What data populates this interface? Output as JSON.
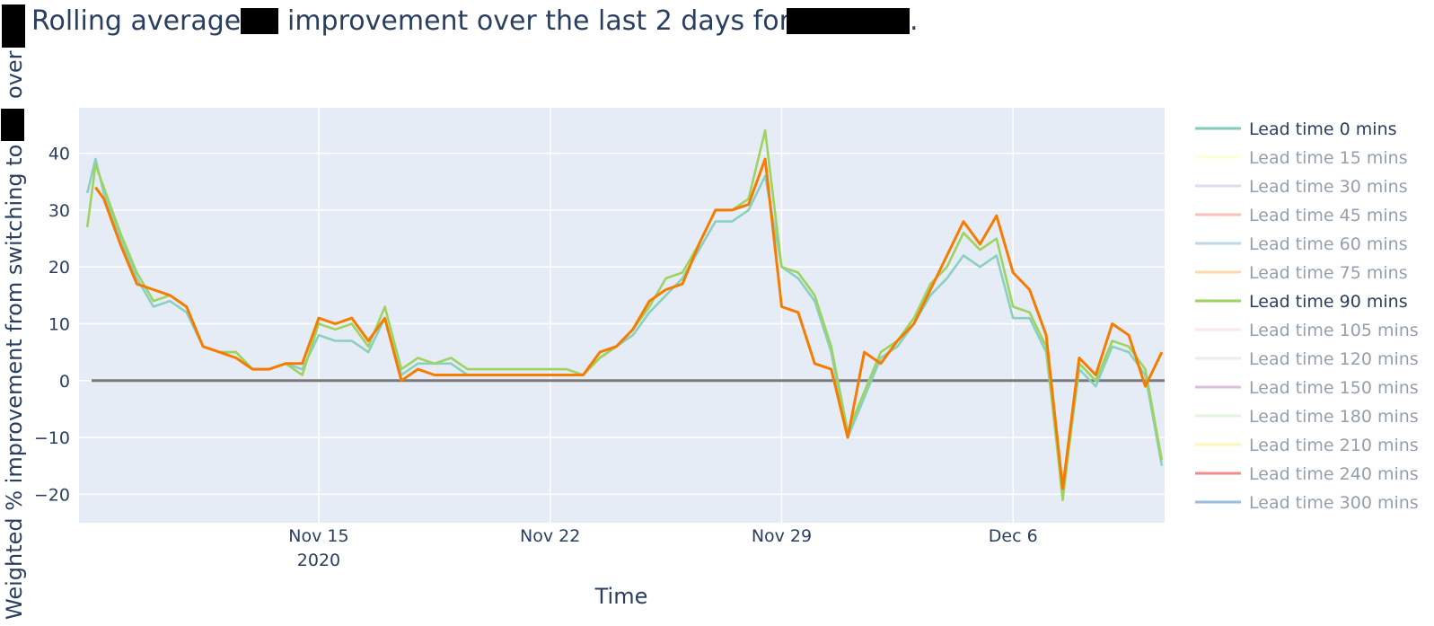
{
  "chart_data": {
    "type": "line",
    "title_parts": [
      "Rolling average",
      "improvement over the last 2 days for",
      "."
    ],
    "xlabel": "Time",
    "ylabel_parts": [
      "over",
      "Weighted % improvement from switching to"
    ],
    "x_range": [
      "2020-11-07T18:00",
      "2020-12-10T14:00"
    ],
    "y_range": [
      -25,
      48
    ],
    "y_ticks": [
      -20,
      -10,
      0,
      10,
      20,
      30,
      40
    ],
    "y_tick_labels": [
      "−20",
      "−10",
      "0",
      "10",
      "20",
      "30",
      "40"
    ],
    "x_ticks": [
      {
        "date": "2020-11-15",
        "label": "Nov 15",
        "sublabel": "2020"
      },
      {
        "date": "2020-11-22",
        "label": "Nov 22",
        "sublabel": ""
      },
      {
        "date": "2020-11-29",
        "label": "Nov 29",
        "sublabel": ""
      },
      {
        "date": "2020-12-06",
        "label": "Dec 6",
        "sublabel": ""
      }
    ],
    "reference_line": {
      "y": 0,
      "color": "#7a7a7a"
    },
    "grid": true,
    "plot_bgcolor": "#e5ecf6",
    "legend_position": "right",
    "series": [
      {
        "name": "Lead time 0 mins",
        "color": "#7fcdbb",
        "visible": true,
        "offset": 0.0
      },
      {
        "name": "Lead time 15 mins",
        "color": "#ffffb3",
        "visible": false
      },
      {
        "name": "Lead time 30 mins",
        "color": "#bebada",
        "visible": false
      },
      {
        "name": "Lead time 45 mins",
        "color": "#fb8072",
        "visible": false
      },
      {
        "name": "Lead time 60 mins",
        "color": "#80b1d3",
        "visible": false
      },
      {
        "name": "Lead time 75 mins",
        "color": "#fdb462",
        "visible": false
      },
      {
        "name": "Lead time 90 mins",
        "color": "#9ed35f",
        "visible": true,
        "offset": 1.0
      },
      {
        "name": "Lead time 105 mins",
        "color": "#fccde5",
        "visible": false
      },
      {
        "name": "Lead time 120 mins",
        "color": "#d9d9d9",
        "visible": false
      },
      {
        "name": "Lead time 150 mins",
        "color": "#bc80bd",
        "visible": false
      },
      {
        "name": "Lead time 180 mins",
        "color": "#ccebc5",
        "visible": false
      },
      {
        "name": "Lead time 210 mins",
        "color": "#ffed6f",
        "visible": false
      },
      {
        "name": "Lead time 240 mins",
        "color": "#e41a1c",
        "visible": false
      },
      {
        "name": "Lead time 300 mins",
        "color": "#377eb8",
        "visible": false
      },
      {
        "name": "",
        "color": "#f57c00",
        "visible": true,
        "offset": 2.0,
        "legend": false
      }
    ],
    "x": [
      "2020-11-08T00:00",
      "2020-11-08T06:00",
      "2020-11-08T12:00",
      "2020-11-09T00:00",
      "2020-11-09T12:00",
      "2020-11-10T00:00",
      "2020-11-10T12:00",
      "2020-11-11T00:00",
      "2020-11-11T12:00",
      "2020-11-12T00:00",
      "2020-11-12T12:00",
      "2020-11-13T00:00",
      "2020-11-13T12:00",
      "2020-11-14T00:00",
      "2020-11-14T12:00",
      "2020-11-15T00:00",
      "2020-11-15T12:00",
      "2020-11-16T00:00",
      "2020-11-16T12:00",
      "2020-11-17T00:00",
      "2020-11-17T12:00",
      "2020-11-18T00:00",
      "2020-11-18T12:00",
      "2020-11-19T00:00",
      "2020-11-19T12:00",
      "2020-11-20T00:00",
      "2020-11-20T12:00",
      "2020-11-21T00:00",
      "2020-11-21T12:00",
      "2020-11-22T00:00",
      "2020-11-22T12:00",
      "2020-11-23T00:00",
      "2020-11-23T12:00",
      "2020-11-24T00:00",
      "2020-11-24T12:00",
      "2020-11-25T00:00",
      "2020-11-25T12:00",
      "2020-11-26T00:00",
      "2020-11-26T12:00",
      "2020-11-27T00:00",
      "2020-11-27T12:00",
      "2020-11-28T00:00",
      "2020-11-28T12:00",
      "2020-11-29T00:00",
      "2020-11-29T12:00",
      "2020-11-30T00:00",
      "2020-11-30T12:00",
      "2020-12-01T00:00",
      "2020-12-01T12:00",
      "2020-12-02T00:00",
      "2020-12-02T12:00",
      "2020-12-03T00:00",
      "2020-12-03T12:00",
      "2020-12-04T00:00",
      "2020-12-04T12:00",
      "2020-12-05T00:00",
      "2020-12-05T12:00",
      "2020-12-06T00:00",
      "2020-12-06T12:00",
      "2020-12-07T00:00",
      "2020-12-07T12:00",
      "2020-12-08T00:00",
      "2020-12-08T12:00",
      "2020-12-09T00:00",
      "2020-12-09T12:00",
      "2020-12-10T00:00",
      "2020-12-10T12:00"
    ],
    "y_series": [
      [
        33,
        39,
        33,
        25,
        18,
        13,
        14,
        12,
        6,
        5,
        5,
        2,
        2,
        3,
        2,
        8,
        7,
        7,
        5,
        11,
        1,
        3,
        3,
        3,
        1,
        1,
        1,
        1,
        1,
        1,
        1,
        1,
        4,
        6,
        8,
        12,
        15,
        18,
        23,
        28,
        28,
        30,
        36,
        20,
        18,
        14,
        5,
        -10,
        -3,
        4,
        6,
        10,
        15,
        18,
        22,
        20,
        22,
        11,
        11,
        5,
        -20,
        2,
        -1,
        6,
        5,
        1,
        -15
      ],
      [
        27,
        38,
        34,
        26,
        19,
        14,
        15,
        13,
        6,
        5,
        5,
        2,
        2,
        3,
        1,
        10,
        9,
        10,
        6,
        13,
        2,
        4,
        3,
        4,
        2,
        2,
        2,
        2,
        2,
        2,
        2,
        1,
        4,
        6,
        9,
        13,
        18,
        19,
        24,
        30,
        30,
        32,
        44,
        20,
        19,
        15,
        6,
        -9,
        -2,
        5,
        7,
        11,
        17,
        20,
        26,
        23,
        25,
        13,
        12,
        6,
        -21,
        3,
        0,
        7,
        6,
        2,
        -14
      ],
      [
        null,
        34,
        32,
        24,
        17,
        16,
        15,
        13,
        6,
        5,
        4,
        2,
        2,
        3,
        3,
        11,
        10,
        11,
        7,
        11,
        0,
        2,
        1,
        1,
        1,
        1,
        1,
        1,
        1,
        1,
        1,
        1,
        5,
        6,
        9,
        14,
        16,
        17,
        24,
        30,
        30,
        31,
        39,
        13,
        12,
        3,
        2,
        -10,
        5,
        3,
        7,
        10,
        16,
        22,
        28,
        24,
        29,
        19,
        16,
        8,
        -19,
        4,
        1,
        10,
        8,
        -1,
        5
      ]
    ]
  }
}
